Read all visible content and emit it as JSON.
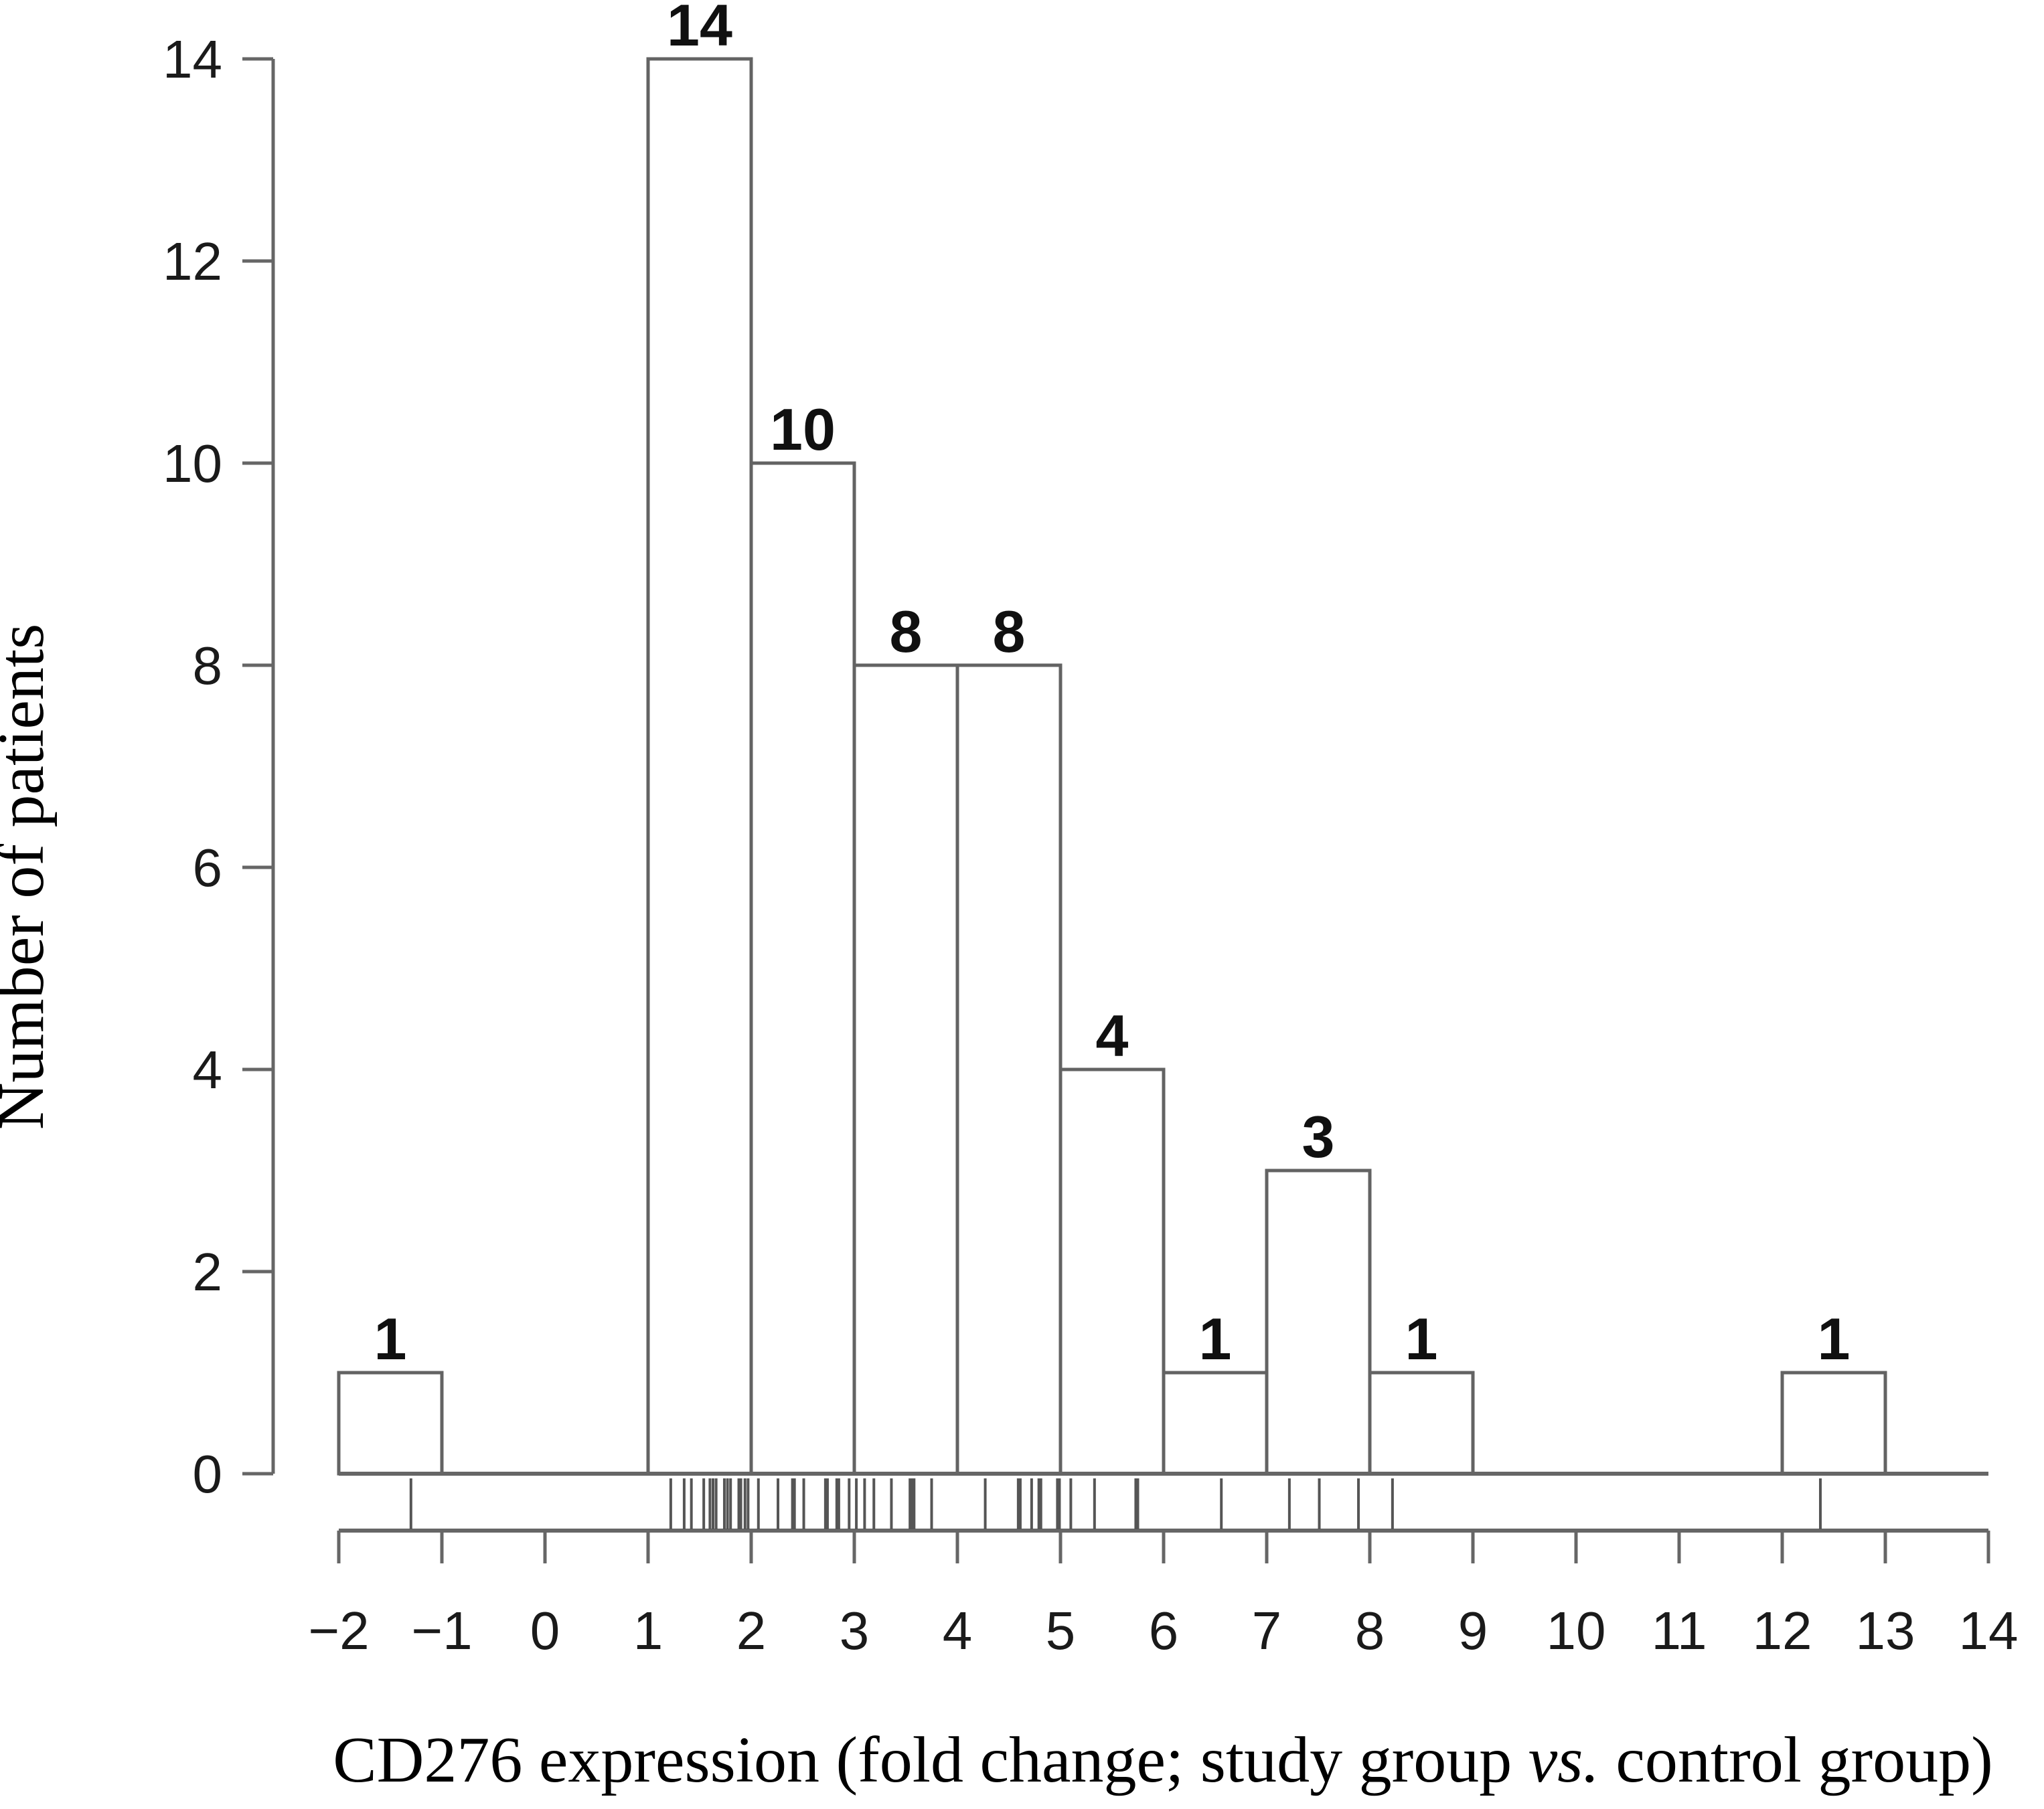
{
  "figure": {
    "background": "#ffffff",
    "axis_color": "#666666",
    "bar_border_color": "#636363",
    "bar_fill_color": "#ffffff",
    "rug_color": "#555555",
    "tick_label_color": "#1a1a1a",
    "bar_label_color": "#101010",
    "title_color": "#000000"
  },
  "chart_data": {
    "type": "bar",
    "subtype": "histogram",
    "title": "",
    "xlabel": "CD276 expression (fold change; study group vs. control group)",
    "xlabel_parts": [
      {
        "text": "CD276 expression (fold change; study group ",
        "italic": false
      },
      {
        "text": "vs.",
        "italic": true
      },
      {
        "text": " control group)",
        "italic": false
      }
    ],
    "ylabel": "Number of patients",
    "xlim": [
      -2,
      14
    ],
    "ylim": [
      0,
      14
    ],
    "grid": false,
    "legend": "none",
    "x_ticks": [
      -2,
      -1,
      0,
      1,
      2,
      3,
      4,
      5,
      6,
      7,
      8,
      9,
      10,
      11,
      12,
      13,
      14
    ],
    "x_tick_labels": [
      "−2",
      "−1",
      "0",
      "1",
      "2",
      "3",
      "4",
      "5",
      "6",
      "7",
      "8",
      "9",
      "10",
      "11",
      "12",
      "13",
      "14"
    ],
    "y_ticks": [
      0,
      2,
      4,
      6,
      8,
      10,
      12,
      14
    ],
    "y_tick_labels": [
      "0",
      "2",
      "4",
      "6",
      "8",
      "10",
      "12",
      "14"
    ],
    "bin_edges": [
      -2,
      -1,
      0,
      1,
      2,
      3,
      4,
      5,
      6,
      7,
      8,
      9,
      10,
      11,
      12,
      13,
      14
    ],
    "counts": [
      1,
      0,
      0,
      14,
      10,
      8,
      8,
      4,
      1,
      3,
      1,
      0,
      0,
      0,
      1,
      0
    ],
    "bar_count_labels_shown": true,
    "rug_values": [
      -1.3,
      1.22,
      1.35,
      1.42,
      1.54,
      1.6,
      1.63,
      1.66,
      1.74,
      1.77,
      1.8,
      1.88,
      1.9,
      1.94,
      1.97,
      2.07,
      2.26,
      2.4,
      2.42,
      2.51,
      2.72,
      2.74,
      2.83,
      2.85,
      2.95,
      3.02,
      3.1,
      3.19,
      3.36,
      3.54,
      3.56,
      3.58,
      3.75,
      4.27,
      4.59,
      4.61,
      4.72,
      4.79,
      4.81,
      4.97,
      4.99,
      5.1,
      5.33,
      5.73,
      5.75,
      6.56,
      7.22,
      7.51,
      7.89,
      8.22,
      12.37
    ]
  }
}
